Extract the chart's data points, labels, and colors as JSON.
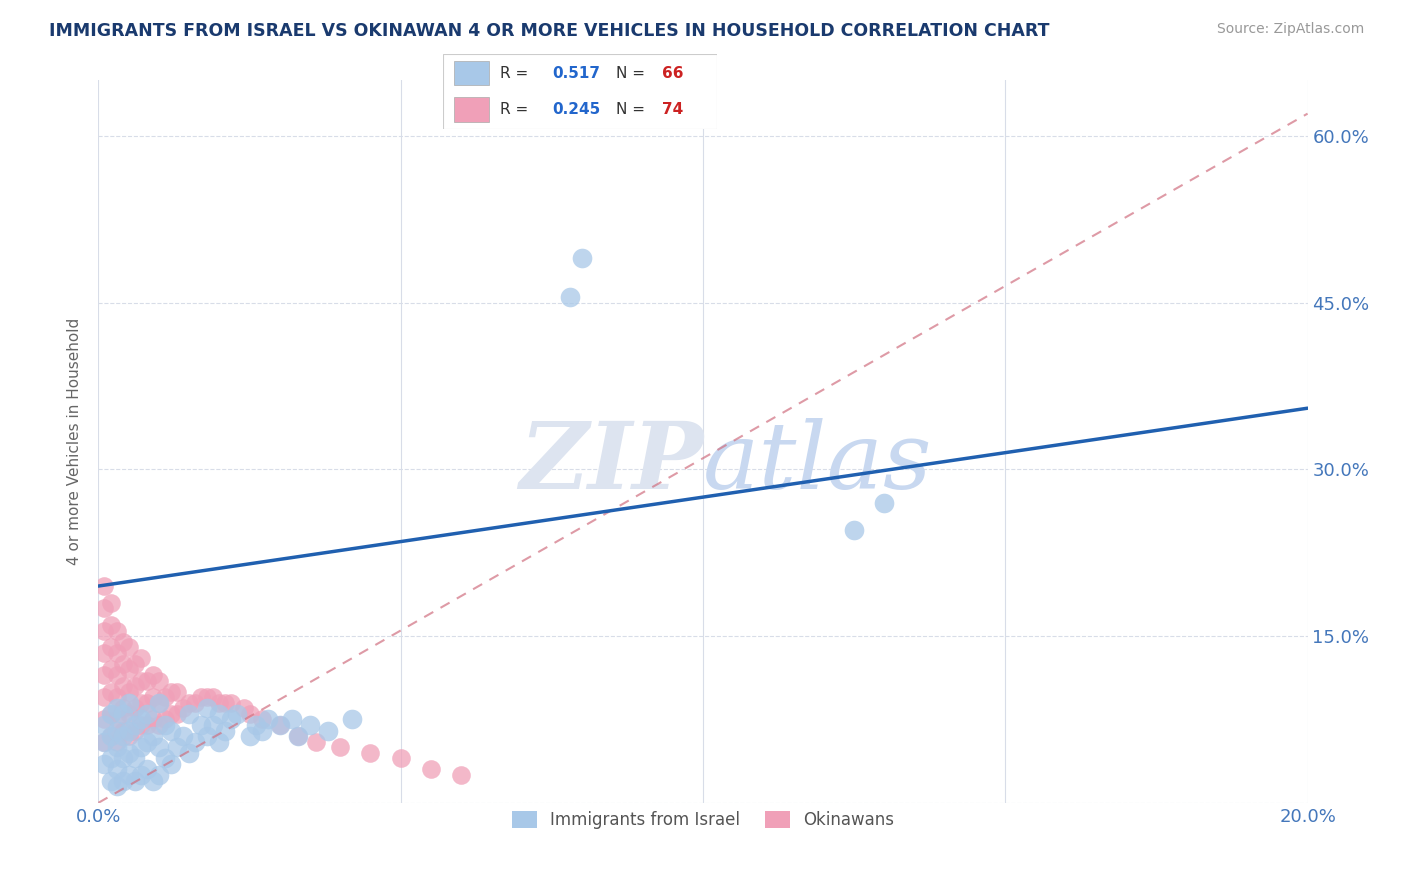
{
  "title": "IMMIGRANTS FROM ISRAEL VS OKINAWAN 4 OR MORE VEHICLES IN HOUSEHOLD CORRELATION CHART",
  "source": "Source: ZipAtlas.com",
  "ylabel": "4 or more Vehicles in Household",
  "xlim": [
    0.0,
    0.2
  ],
  "ylim": [
    0.0,
    0.65
  ],
  "xticks": [
    0.0,
    0.05,
    0.1,
    0.15,
    0.2
  ],
  "yticks": [
    0.0,
    0.15,
    0.3,
    0.45,
    0.6
  ],
  "watermark": "ZIPatlas",
  "blue_color": "#a8c8e8",
  "pink_color": "#f0a0b8",
  "line_blue": "#2060b0",
  "line_dashed_color": "#d07080",
  "title_color": "#1a3a6e",
  "axis_label_color": "#666666",
  "tick_color": "#4477bb",
  "source_color": "#999999",
  "israel_scatter_x": [
    0.001,
    0.001,
    0.001,
    0.002,
    0.002,
    0.002,
    0.002,
    0.003,
    0.003,
    0.003,
    0.003,
    0.003,
    0.004,
    0.004,
    0.004,
    0.004,
    0.005,
    0.005,
    0.005,
    0.005,
    0.006,
    0.006,
    0.006,
    0.007,
    0.007,
    0.007,
    0.008,
    0.008,
    0.008,
    0.009,
    0.009,
    0.01,
    0.01,
    0.01,
    0.011,
    0.011,
    0.012,
    0.012,
    0.013,
    0.014,
    0.015,
    0.015,
    0.016,
    0.017,
    0.018,
    0.018,
    0.019,
    0.02,
    0.02,
    0.021,
    0.022,
    0.023,
    0.025,
    0.026,
    0.027,
    0.028,
    0.03,
    0.032,
    0.033,
    0.035,
    0.038,
    0.042,
    0.078,
    0.08,
    0.125,
    0.13
  ],
  "israel_scatter_y": [
    0.035,
    0.055,
    0.07,
    0.02,
    0.04,
    0.06,
    0.08,
    0.015,
    0.03,
    0.05,
    0.065,
    0.085,
    0.02,
    0.04,
    0.06,
    0.08,
    0.025,
    0.045,
    0.065,
    0.09,
    0.02,
    0.04,
    0.07,
    0.025,
    0.05,
    0.075,
    0.03,
    0.055,
    0.08,
    0.02,
    0.06,
    0.025,
    0.05,
    0.09,
    0.04,
    0.07,
    0.035,
    0.065,
    0.05,
    0.06,
    0.045,
    0.08,
    0.055,
    0.07,
    0.06,
    0.085,
    0.07,
    0.055,
    0.08,
    0.065,
    0.075,
    0.08,
    0.06,
    0.07,
    0.065,
    0.075,
    0.07,
    0.075,
    0.06,
    0.07,
    0.065,
    0.075,
    0.455,
    0.49,
    0.245,
    0.27
  ],
  "okinawa_scatter_x": [
    0.001,
    0.001,
    0.001,
    0.001,
    0.001,
    0.001,
    0.001,
    0.001,
    0.002,
    0.002,
    0.002,
    0.002,
    0.002,
    0.002,
    0.002,
    0.003,
    0.003,
    0.003,
    0.003,
    0.003,
    0.003,
    0.004,
    0.004,
    0.004,
    0.004,
    0.004,
    0.005,
    0.005,
    0.005,
    0.005,
    0.005,
    0.006,
    0.006,
    0.006,
    0.006,
    0.007,
    0.007,
    0.007,
    0.007,
    0.008,
    0.008,
    0.008,
    0.009,
    0.009,
    0.009,
    0.01,
    0.01,
    0.01,
    0.011,
    0.011,
    0.012,
    0.012,
    0.013,
    0.013,
    0.014,
    0.015,
    0.016,
    0.017,
    0.018,
    0.019,
    0.02,
    0.021,
    0.022,
    0.024,
    0.025,
    0.027,
    0.03,
    0.033,
    0.036,
    0.04,
    0.045,
    0.05,
    0.055,
    0.06
  ],
  "okinawa_scatter_y": [
    0.055,
    0.075,
    0.095,
    0.115,
    0.135,
    0.155,
    0.175,
    0.195,
    0.06,
    0.08,
    0.1,
    0.12,
    0.14,
    0.16,
    0.18,
    0.055,
    0.075,
    0.095,
    0.115,
    0.135,
    0.155,
    0.065,
    0.085,
    0.105,
    0.125,
    0.145,
    0.06,
    0.08,
    0.1,
    0.12,
    0.14,
    0.065,
    0.085,
    0.105,
    0.125,
    0.07,
    0.09,
    0.11,
    0.13,
    0.07,
    0.09,
    0.11,
    0.075,
    0.095,
    0.115,
    0.07,
    0.09,
    0.11,
    0.075,
    0.095,
    0.08,
    0.1,
    0.08,
    0.1,
    0.085,
    0.09,
    0.09,
    0.095,
    0.095,
    0.095,
    0.09,
    0.09,
    0.09,
    0.085,
    0.08,
    0.075,
    0.07,
    0.06,
    0.055,
    0.05,
    0.045,
    0.04,
    0.03,
    0.025
  ],
  "blue_line_x": [
    0.0,
    0.2
  ],
  "blue_line_y": [
    0.195,
    0.355
  ],
  "dashed_line_x": [
    0.0,
    0.2
  ],
  "dashed_line_y": [
    0.0,
    0.62
  ]
}
